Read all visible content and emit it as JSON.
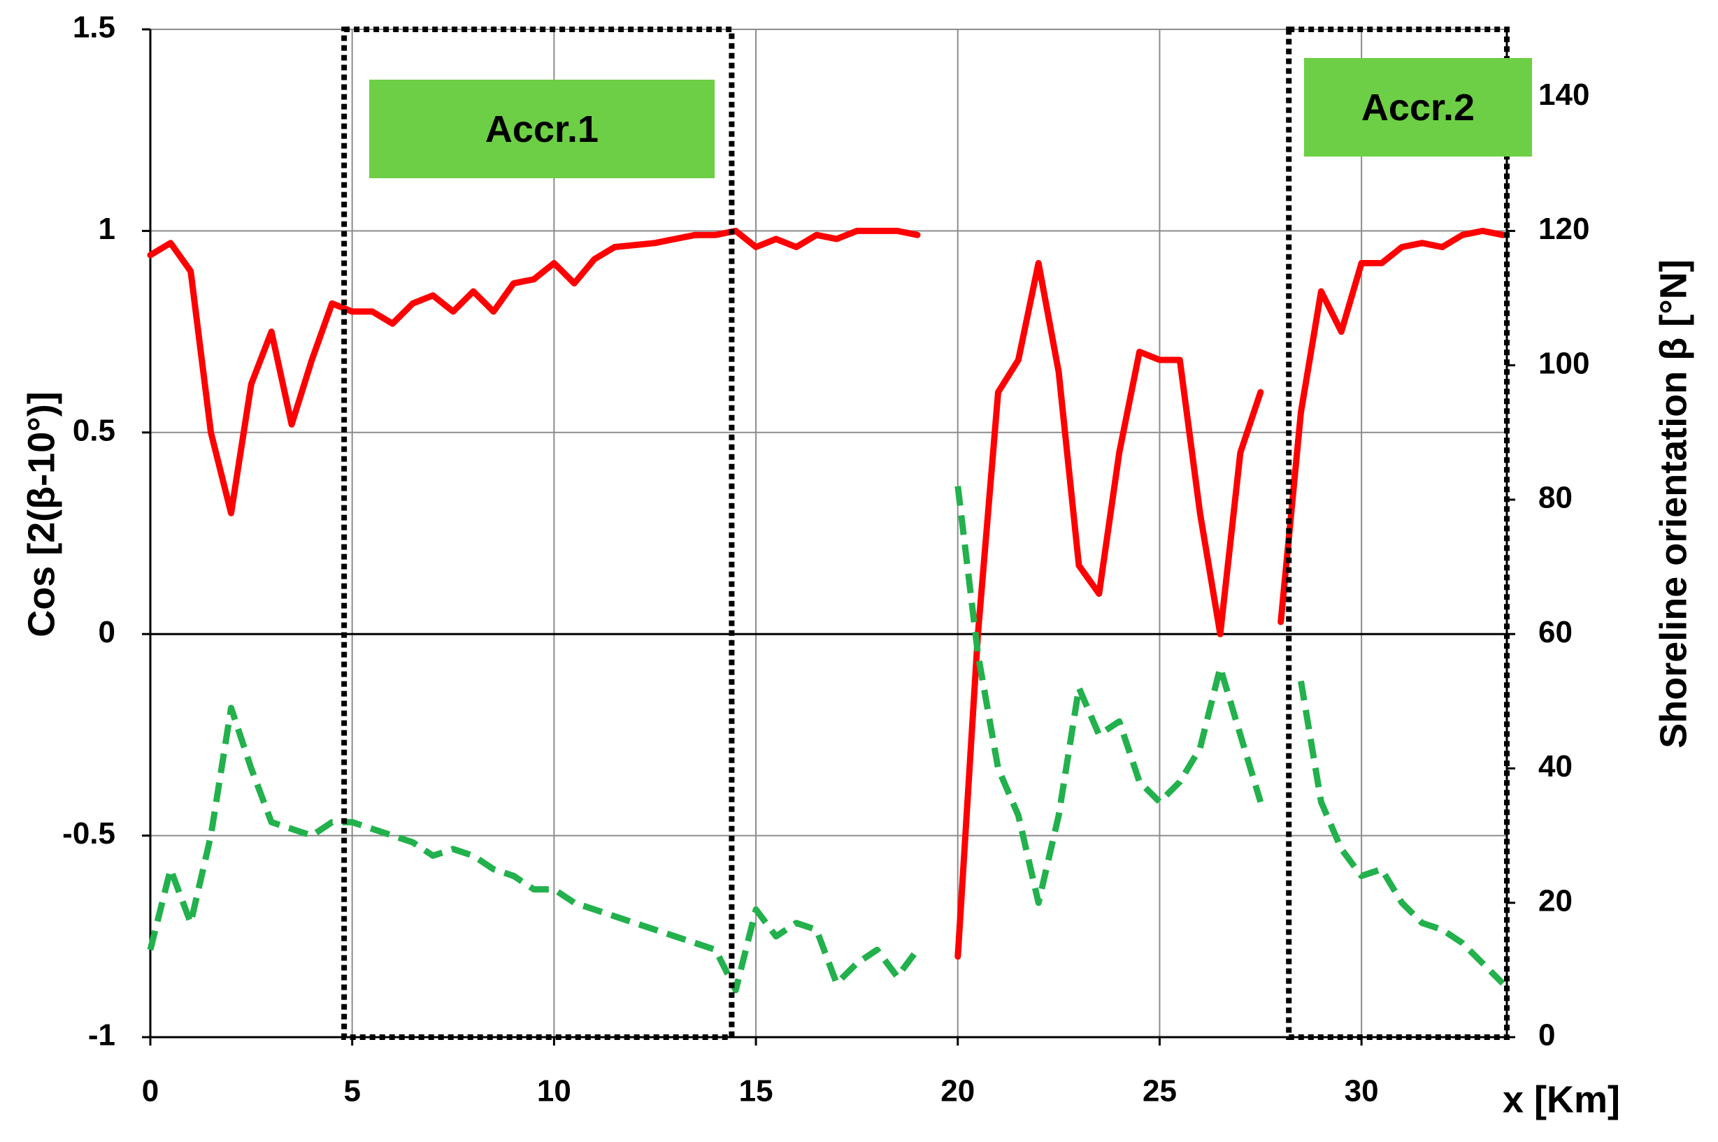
{
  "chart_data": {
    "type": "line",
    "x_label": "x [Km]",
    "y_label": "Cos  [2(β-10°)]",
    "y2_label": "Shoreline orientation β [°N]",
    "xlim": [
      0,
      33.6
    ],
    "xticks": [
      0,
      5,
      10,
      15,
      20,
      25,
      30
    ],
    "ylim": [
      -1,
      1.5
    ],
    "yticks": [
      -1,
      -0.5,
      0,
      0.5,
      1,
      1.5
    ],
    "y2lim": [
      0,
      150
    ],
    "y2ticks": [
      0,
      20,
      40,
      60,
      80,
      100,
      120,
      140
    ],
    "grid": true,
    "x": [
      0,
      0.5,
      1,
      1.5,
      2,
      2.5,
      3,
      3.5,
      4,
      4.5,
      5,
      5.5,
      6,
      6.5,
      7,
      7.5,
      8,
      8.5,
      9,
      9.5,
      10,
      10.5,
      11,
      11.5,
      12,
      12.5,
      13,
      13.5,
      14,
      14.5,
      15,
      15.5,
      16,
      16.5,
      17,
      17.5,
      18,
      18.5,
      19,
      19.5,
      20,
      20.5,
      21,
      21.5,
      22,
      22.5,
      23,
      23.5,
      24,
      24.5,
      25,
      25.5,
      26,
      26.5,
      27,
      27.5,
      27.75,
      28,
      28.5,
      29,
      29.5,
      30,
      30.5,
      31,
      31.5,
      32,
      32.5,
      33,
      33.5
    ],
    "series": [
      {
        "color": "#ff0000",
        "style": "solid",
        "values": [
          0.94,
          0.97,
          0.9,
          0.5,
          0.3,
          0.62,
          0.75,
          0.52,
          0.68,
          0.82,
          0.8,
          0.8,
          0.77,
          0.82,
          0.84,
          0.8,
          0.85,
          0.8,
          0.87,
          0.88,
          0.92,
          0.87,
          0.93,
          0.96,
          0.965,
          0.97,
          0.98,
          0.99,
          0.99,
          1.0,
          0.96,
          0.98,
          0.96,
          0.99,
          0.98,
          1.0,
          1.0,
          1.0,
          0.99,
          null,
          -0.8,
          0.0,
          0.6,
          0.68,
          0.92,
          0.65,
          0.17,
          0.1,
          0.45,
          0.7,
          0.68,
          0.68,
          0.3,
          0.0,
          0.45,
          0.6,
          null,
          0.03,
          0.55,
          0.85,
          0.75,
          0.92,
          0.92,
          0.96,
          0.97,
          0.96,
          0.99,
          1.0,
          0.99
        ]
      },
      {
        "color": "#22b14c",
        "style": "dashed",
        "axis": "y2",
        "values": [
          13,
          25,
          17,
          30,
          49,
          40,
          32,
          31,
          30,
          32,
          32,
          31,
          30,
          29,
          27,
          28,
          27,
          25,
          24,
          22,
          22,
          20,
          19,
          18,
          17,
          16,
          15,
          14,
          13,
          7,
          19,
          15,
          17,
          16,
          8,
          11,
          13,
          9,
          13,
          null,
          82,
          57,
          40,
          33,
          20,
          33,
          52,
          45,
          47,
          38,
          35,
          38,
          43,
          55,
          45,
          35,
          null,
          null,
          53,
          35,
          28,
          24,
          25,
          20,
          17,
          16,
          14,
          11,
          8
        ]
      }
    ],
    "regions": [
      {
        "label": "Accr.1",
        "xrange": [
          4.8,
          14.4
        ],
        "label_color": "#6dcf45"
      },
      {
        "label": "Accr.2",
        "xrange": [
          28.2,
          33.6
        ],
        "label_color": "#6dcf45"
      }
    ]
  }
}
